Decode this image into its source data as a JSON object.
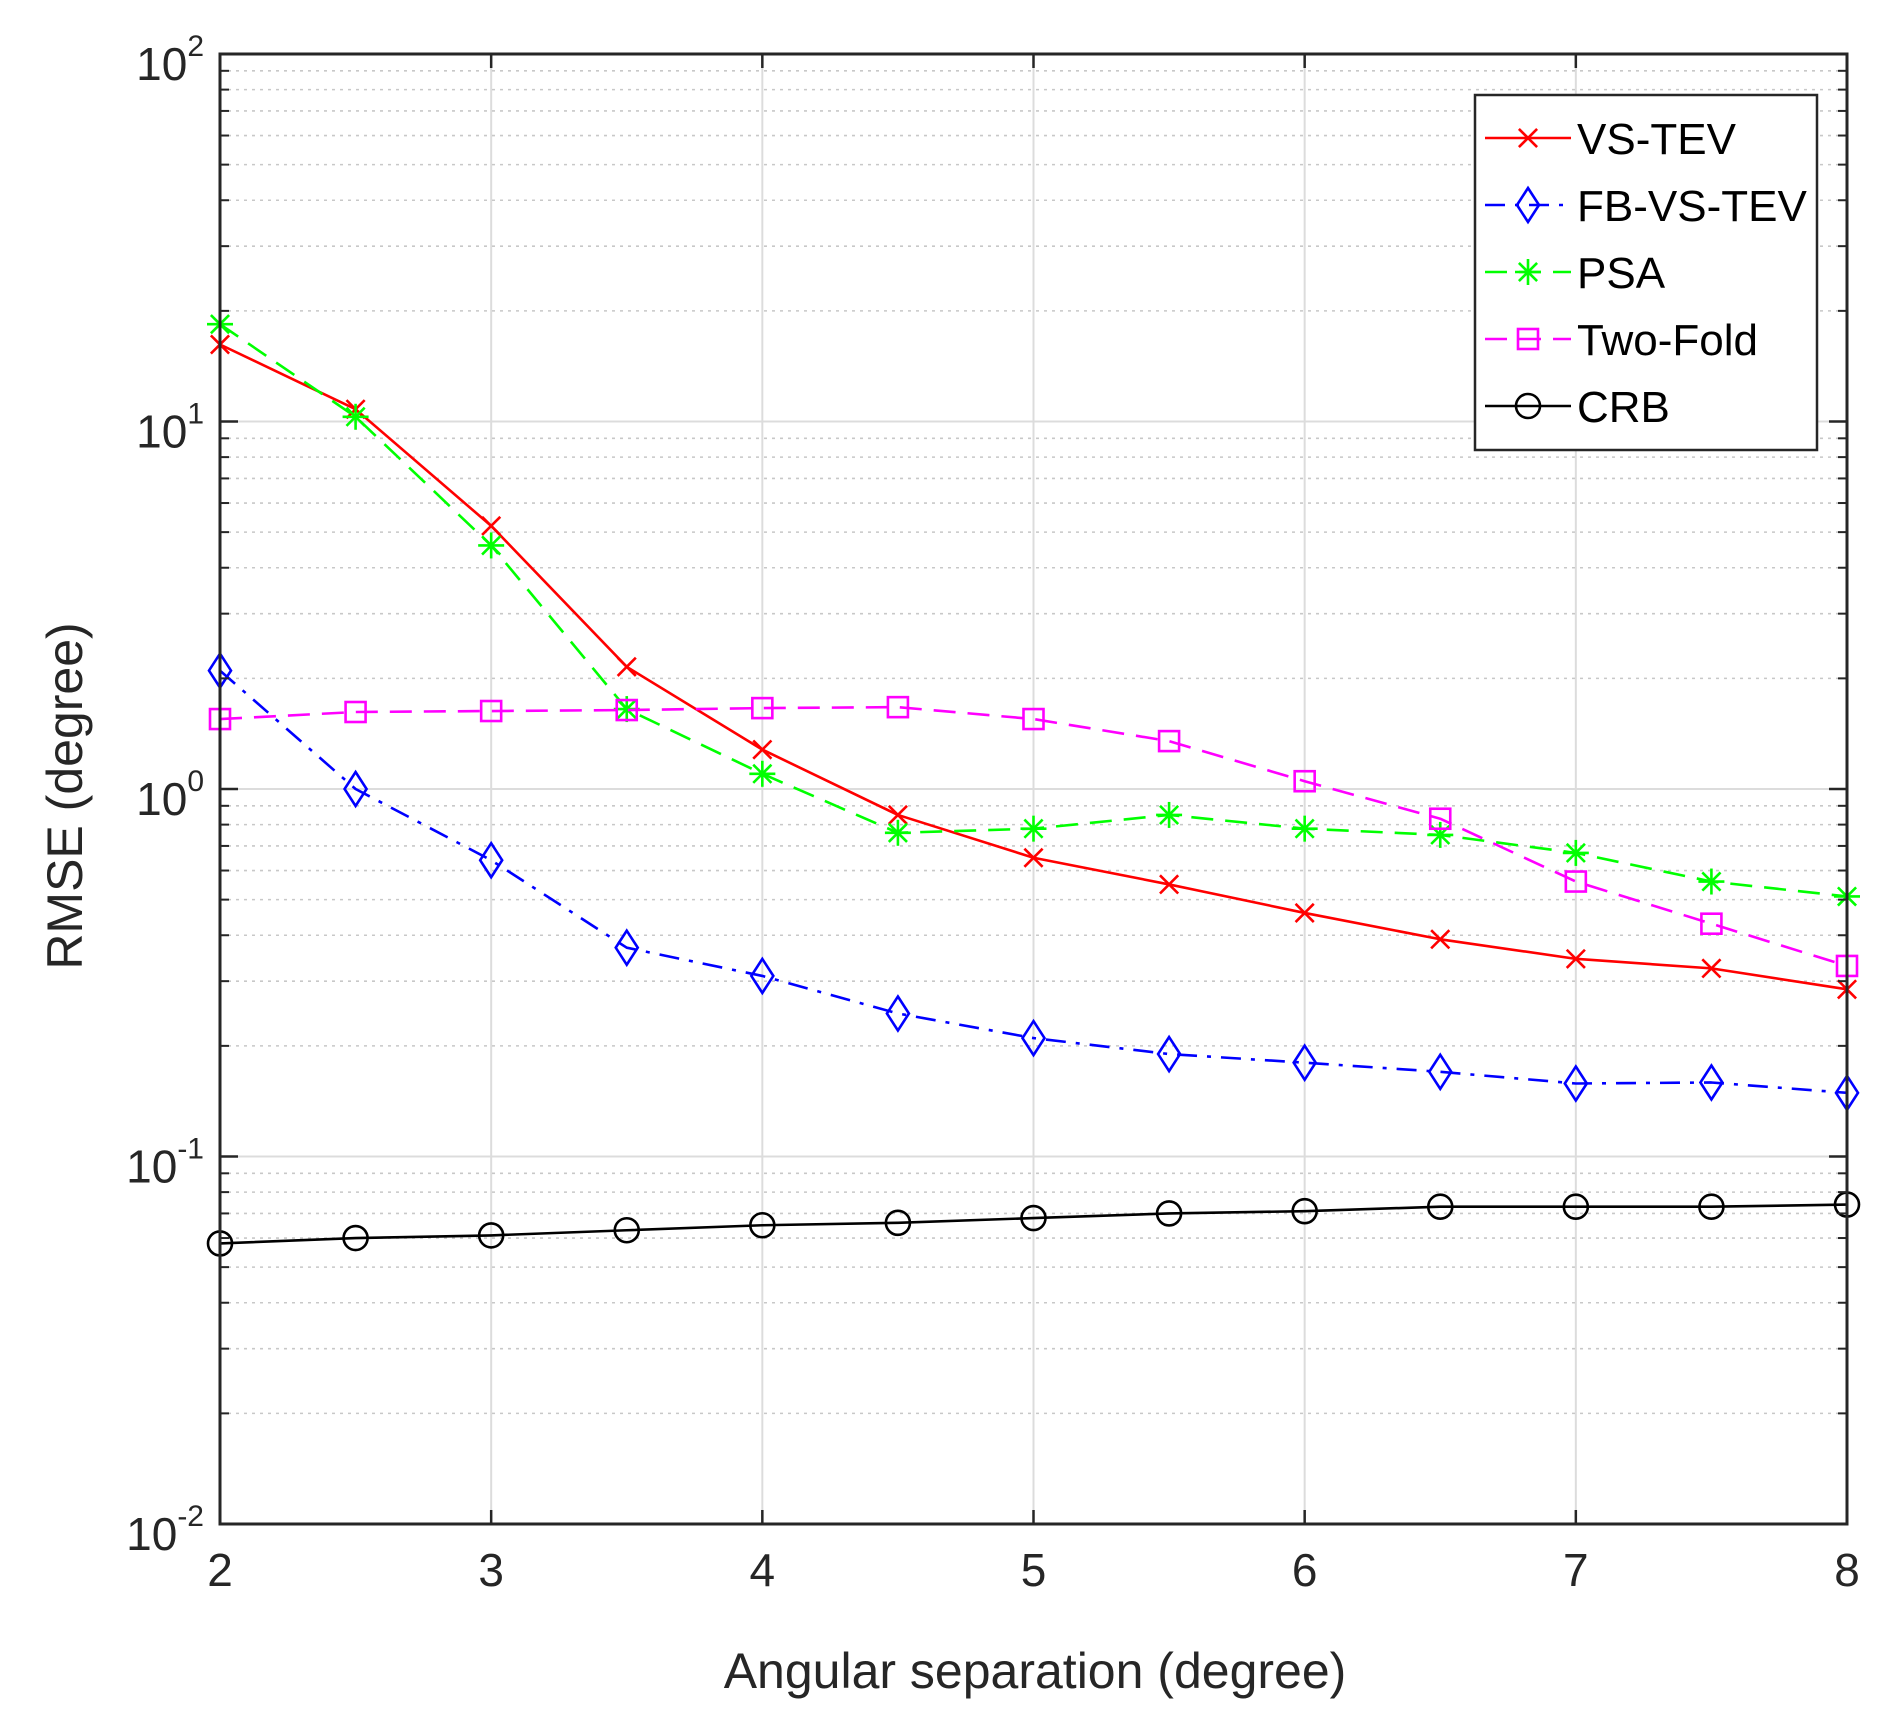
{
  "chart_data": {
    "type": "line",
    "title": "",
    "xlabel": "Angular separation (degree)",
    "ylabel": "RMSE  (degree)",
    "xlim": [
      2,
      8
    ],
    "ylim": [
      0.01,
      100
    ],
    "yscale": "log",
    "grid": true,
    "legend_position": "top-right",
    "x_ticks": [
      "2",
      "3",
      "4",
      "5",
      "6",
      "7",
      "8"
    ],
    "y_ticks": [
      {
        "base": "10",
        "exp": "-2",
        "value": 0.01
      },
      {
        "base": "10",
        "exp": "-1",
        "value": 0.1
      },
      {
        "base": "10",
        "exp": "0",
        "value": 1
      },
      {
        "base": "10",
        "exp": "1",
        "value": 10
      },
      {
        "base": "10",
        "exp": "2",
        "value": 100
      }
    ],
    "x": [
      2,
      2.5,
      3,
      3.5,
      4,
      4.5,
      5,
      5.5,
      6,
      6.5,
      7,
      7.5,
      8
    ],
    "series": [
      {
        "name": "VS-TEV",
        "color": "#ff0000",
        "dash": "solid",
        "marker": "x",
        "values": [
          16.2,
          10.8,
          5.2,
          2.15,
          1.28,
          0.85,
          0.65,
          0.55,
          0.46,
          0.39,
          0.345,
          0.325,
          0.285
        ]
      },
      {
        "name": "FB-VS-TEV",
        "color": "#0000ff",
        "dash": "dashdot",
        "marker": "diamond",
        "values": [
          2.1,
          1.0,
          0.64,
          0.37,
          0.31,
          0.245,
          0.21,
          0.19,
          0.18,
          0.17,
          0.158,
          0.159,
          0.149
        ]
      },
      {
        "name": "PSA",
        "color": "#00ff00",
        "dash": "dashed",
        "marker": "star",
        "values": [
          18.4,
          10.3,
          4.6,
          1.65,
          1.1,
          0.76,
          0.78,
          0.85,
          0.78,
          0.75,
          0.67,
          0.56,
          0.51
        ]
      },
      {
        "name": "Two-Fold",
        "color": "#ff00ff",
        "dash": "dashed",
        "marker": "square",
        "values": [
          1.55,
          1.62,
          1.63,
          1.64,
          1.66,
          1.67,
          1.55,
          1.35,
          1.05,
          0.83,
          0.56,
          0.43,
          0.33
        ]
      },
      {
        "name": "CRB",
        "color": "#000000",
        "dash": "solid",
        "marker": "circle",
        "values": [
          0.058,
          0.06,
          0.061,
          0.063,
          0.065,
          0.066,
          0.068,
          0.07,
          0.071,
          0.073,
          0.073,
          0.073,
          0.074
        ]
      }
    ]
  }
}
